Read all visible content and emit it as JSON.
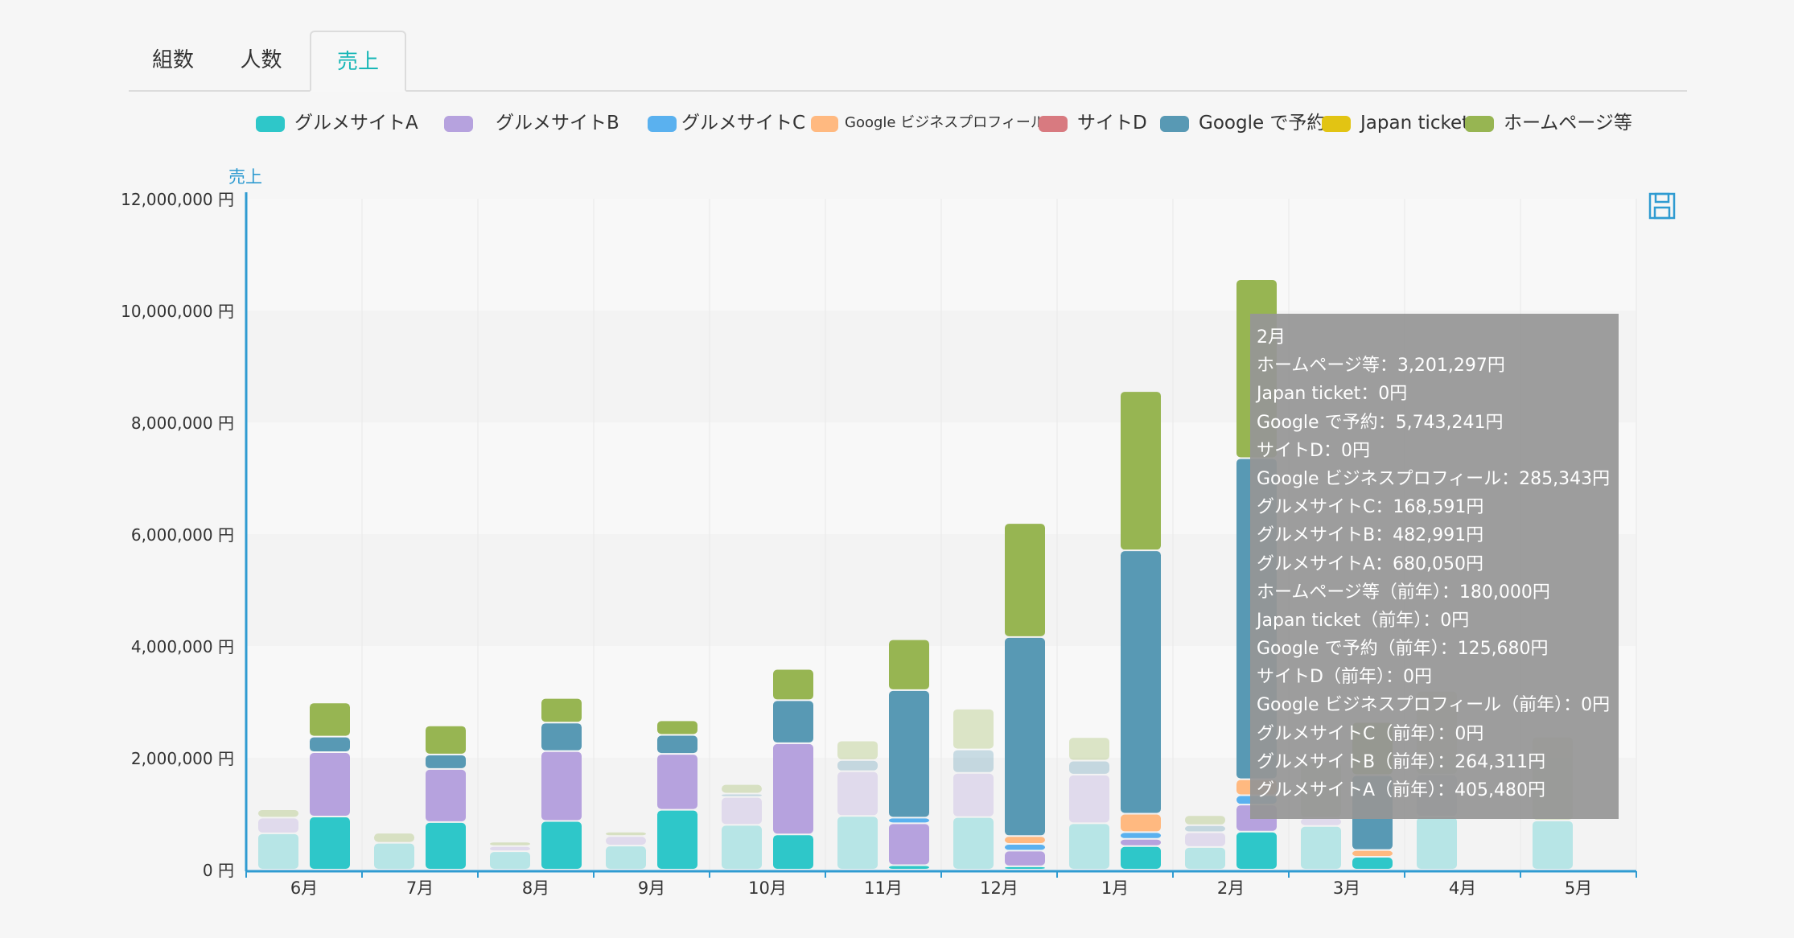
{
  "tabs": [
    {
      "label": "組数",
      "active": false
    },
    {
      "label": "人数",
      "active": false
    },
    {
      "label": "売上",
      "active": true
    }
  ],
  "legend": [
    {
      "label": "グルメサイトA",
      "color": "#2ec7c9"
    },
    {
      "label": "グルメサイトB",
      "color": "#b6a2de"
    },
    {
      "label": "グルメサイトC",
      "color": "#5ab1ef"
    },
    {
      "label": "Google ビジネスプロフィール",
      "color": "#ffb980"
    },
    {
      "label": "サイトD",
      "color": "#d87a80"
    },
    {
      "label": "Google で予約",
      "color": "#5899b4"
    },
    {
      "label": "Japan ticket",
      "color": "#e2c413"
    },
    {
      "label": "ホームページ等",
      "color": "#97b552"
    }
  ],
  "save_icon": "save-icon",
  "tooltip": {
    "title": "2月",
    "lines": [
      "ホームページ等：3,201,297円",
      "Japan ticket：0円",
      "Google で予約：5,743,241円",
      "サイトD：0円",
      "Google ビジネスプロフィール：285,343円",
      "グルメサイトC：168,591円",
      "グルメサイトB：482,991円",
      "グルメサイトA：680,050円",
      "ホームページ等（前年）：180,000円",
      "Japan ticket（前年）：0円",
      "Google で予約（前年）：125,680円",
      "サイトD（前年）：0円",
      "Google ビジネスプロフィール（前年）：0円",
      "グルメサイトC（前年）：0円",
      "グルメサイトB（前年）：264,311円",
      "グルメサイトA（前年）：405,480円"
    ]
  },
  "chart_data": {
    "type": "bar",
    "stacked": true,
    "ylabel": "売上",
    "ylim": [
      0,
      12000000
    ],
    "y_ticks": [
      "0 円",
      "2,000,000 円",
      "4,000,000 円",
      "6,000,000 円",
      "8,000,000 円",
      "10,000,000 円",
      "12,000,000 円"
    ],
    "y_tick_values": [
      0,
      2000000,
      4000000,
      6000000,
      8000000,
      10000000,
      12000000
    ],
    "categories": [
      "6月",
      "7月",
      "8月",
      "9月",
      "10月",
      "11月",
      "12月",
      "1月",
      "2月",
      "3月",
      "4月",
      "5月"
    ],
    "legend_position": "top",
    "grid": true,
    "series_current": [
      {
        "name": "グルメサイトA",
        "color": "#2ec7c9",
        "values": [
          950000,
          850000,
          870000,
          1070000,
          630000,
          80000,
          60000,
          420000,
          680050,
          230000,
          0,
          0
        ]
      },
      {
        "name": "グルメサイトB",
        "color": "#b6a2de",
        "values": [
          1150000,
          950000,
          1250000,
          1000000,
          1630000,
          750000,
          280000,
          130000,
          482991,
          0,
          0,
          0
        ]
      },
      {
        "name": "グルメサイトC",
        "color": "#5ab1ef",
        "values": [
          0,
          0,
          0,
          0,
          0,
          100000,
          120000,
          120000,
          168591,
          0,
          0,
          0
        ]
      },
      {
        "name": "Google ビジネスプロフィール",
        "color": "#ffb980",
        "values": [
          0,
          0,
          0,
          0,
          0,
          0,
          140000,
          330000,
          285343,
          120000,
          0,
          0
        ]
      },
      {
        "name": "サイトD",
        "color": "#d87a80",
        "values": [
          0,
          0,
          0,
          0,
          0,
          0,
          0,
          0,
          0,
          0,
          0,
          0
        ]
      },
      {
        "name": "Google で予約",
        "color": "#5899b4",
        "values": [
          280000,
          260000,
          510000,
          340000,
          770000,
          2280000,
          3560000,
          4710000,
          5743241,
          1340000,
          0,
          0
        ]
      },
      {
        "name": "Japan ticket",
        "color": "#e2c413",
        "values": [
          0,
          0,
          0,
          0,
          0,
          0,
          0,
          0,
          0,
          0,
          0,
          0
        ]
      },
      {
        "name": "ホームページ等",
        "color": "#97b552",
        "values": [
          610000,
          520000,
          440000,
          260000,
          560000,
          910000,
          2040000,
          2850000,
          3201297,
          950000,
          0,
          0
        ]
      }
    ],
    "series_previous_year": [
      {
        "name": "グルメサイトA（前年）",
        "color": "#2ec7c9",
        "values": [
          650000,
          480000,
          330000,
          430000,
          800000,
          960000,
          940000,
          830000,
          405480,
          780000,
          950000,
          880000
        ]
      },
      {
        "name": "グルメサイトB（前年）",
        "color": "#b6a2de",
        "values": [
          280000,
          0,
          90000,
          170000,
          500000,
          800000,
          790000,
          870000,
          264311,
          150000,
          0,
          0
        ]
      },
      {
        "name": "グルメサイトC（前年）",
        "color": "#5ab1ef",
        "values": [
          0,
          0,
          0,
          0,
          0,
          0,
          0,
          0,
          0,
          0,
          0,
          0
        ]
      },
      {
        "name": "Google ビジネスプロフィール（前年）",
        "color": "#ffb980",
        "values": [
          0,
          0,
          0,
          0,
          0,
          0,
          0,
          0,
          0,
          0,
          0,
          0
        ]
      },
      {
        "name": "サイトD（前年）",
        "color": "#d87a80",
        "values": [
          0,
          0,
          0,
          0,
          0,
          0,
          0,
          0,
          0,
          0,
          0,
          0
        ]
      },
      {
        "name": "Google で予約（前年）",
        "color": "#5899b4",
        "values": [
          0,
          0,
          0,
          0,
          60000,
          200000,
          420000,
          250000,
          125680,
          0,
          750000,
          0
        ]
      },
      {
        "name": "Japan ticket（前年）",
        "color": "#e2c413",
        "values": [
          0,
          0,
          0,
          0,
          0,
          0,
          0,
          0,
          0,
          0,
          0,
          0
        ]
      },
      {
        "name": "ホームページ等（前年）",
        "color": "#97b552",
        "values": [
          150000,
          180000,
          80000,
          80000,
          170000,
          350000,
          730000,
          420000,
          180000,
          1000000,
          1500000,
          1500000
        ]
      }
    ]
  }
}
